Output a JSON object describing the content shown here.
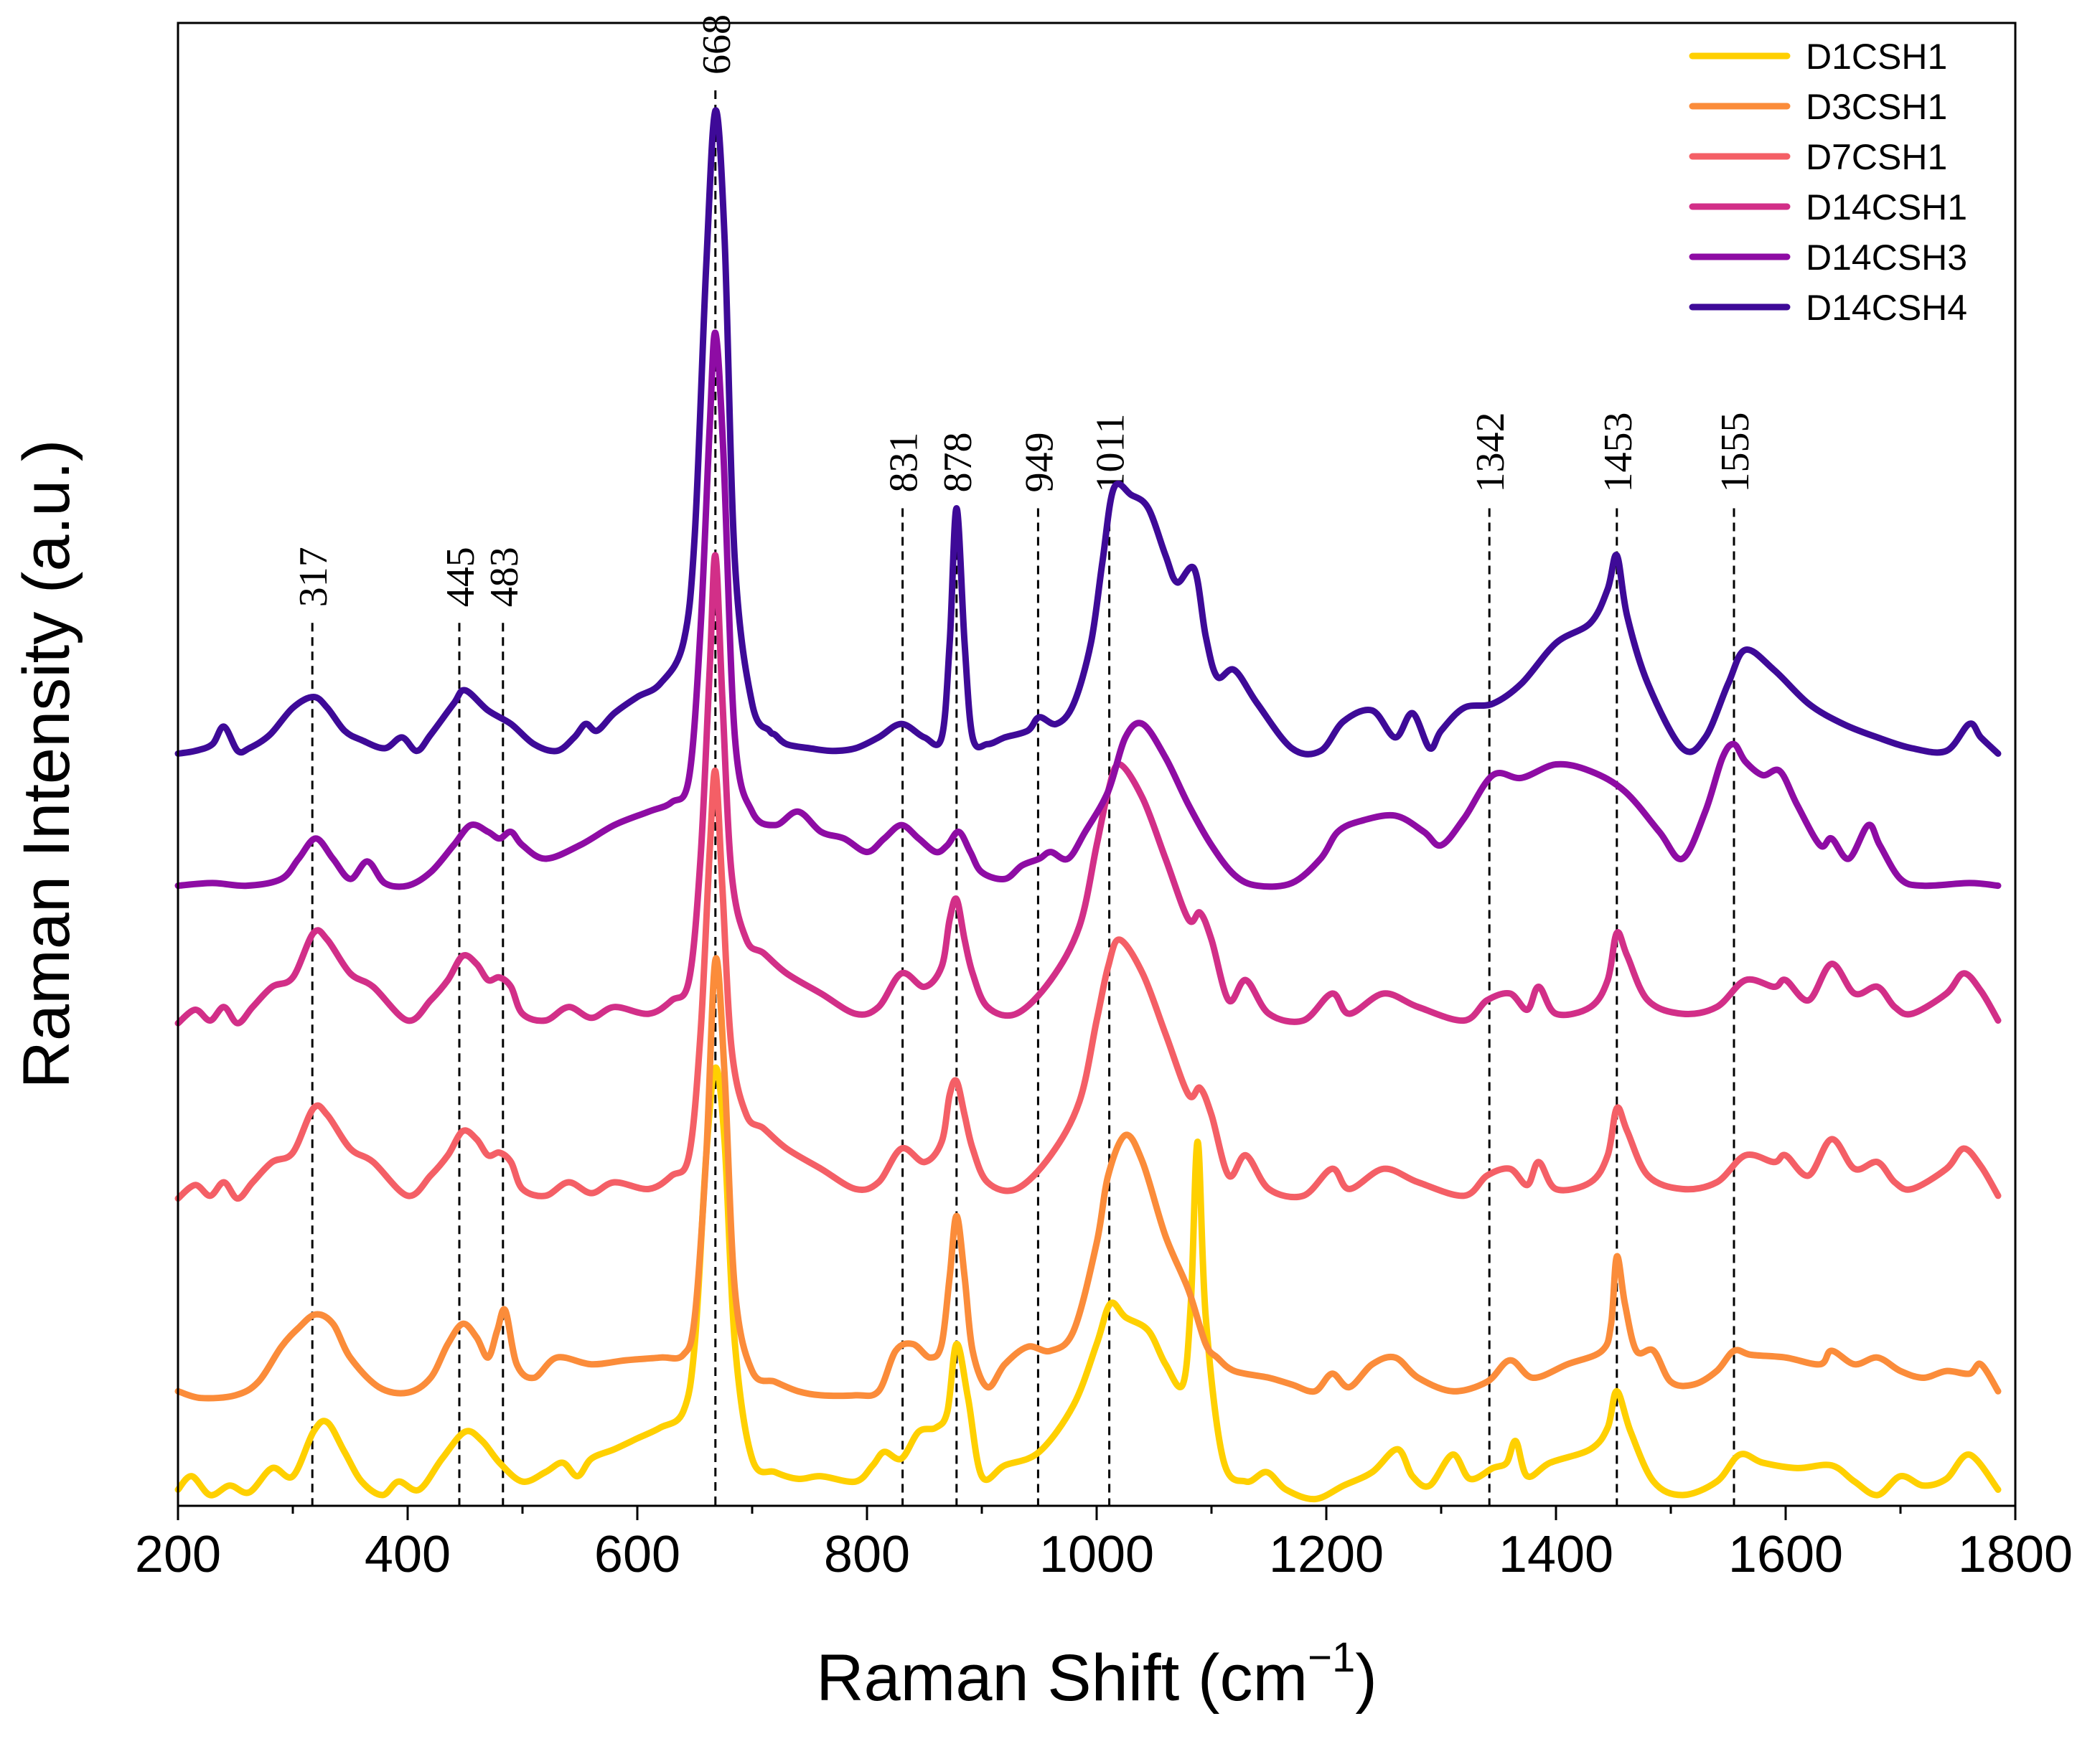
{
  "chart_data": {
    "type": "line",
    "title": "",
    "xlabel": "Raman Shift (cm",
    "xlabel_sup": "−1",
    "xlabel_end": ")",
    "ylabel": "Raman Intensity (a.u.)",
    "xlim": [
      200,
      1800
    ],
    "ylim": [
      0,
      11
    ],
    "x_ticks": [
      200,
      400,
      600,
      800,
      1000,
      1200,
      1400,
      1600,
      1800
    ],
    "x_tick_labels": [
      "200",
      "400",
      "600",
      "800",
      "1000",
      "1200",
      "1400",
      "1600",
      "1800"
    ],
    "y_ticks_shown": false,
    "legend_position": "top-right",
    "peak_markers": [
      {
        "x": 317,
        "label": "317",
        "top": 6.55
      },
      {
        "x": 445,
        "label": "445",
        "top": 6.55
      },
      {
        "x": 483,
        "label": "483",
        "top": 6.55
      },
      {
        "x": 668,
        "label": "668",
        "top": 10.5
      },
      {
        "x": 831,
        "label": "831",
        "top": 7.4
      },
      {
        "x": 878,
        "label": "878",
        "top": 7.4
      },
      {
        "x": 949,
        "label": "949",
        "top": 7.4
      },
      {
        "x": 1011,
        "label": "1011",
        "top": 7.4
      },
      {
        "x": 1342,
        "label": "1342",
        "top": 7.4
      },
      {
        "x": 1453,
        "label": "1453",
        "top": 7.4
      },
      {
        "x": 1555,
        "label": "1555",
        "top": 7.4
      }
    ],
    "series": [
      {
        "name": "D1CSH1",
        "color": "#FFD000",
        "x": [
          200,
          212,
          228,
          245,
          262,
          282,
          300,
          318,
          330,
          345,
          360,
          378,
          392,
          410,
          430,
          450,
          465,
          480,
          500,
          520,
          535,
          548,
          560,
          580,
          600,
          620,
          640,
          650,
          660,
          668,
          676,
          685,
          700,
          720,
          740,
          760,
          790,
          805,
          815,
          830,
          845,
          860,
          870,
          878,
          888,
          900,
          920,
          950,
          980,
          1000,
          1012,
          1025,
          1045,
          1060,
          1075,
          1082,
          1088,
          1095,
          1110,
          1130,
          1148,
          1165,
          1190,
          1215,
          1240,
          1262,
          1275,
          1290,
          1310,
          1325,
          1345,
          1357,
          1365,
          1375,
          1395,
          1430,
          1445,
          1453,
          1465,
          1485,
          1510,
          1540,
          1560,
          1580,
          1610,
          1640,
          1660,
          1680,
          1700,
          1720,
          1740,
          1760,
          1785
        ],
        "y": [
          0.12,
          0.22,
          0.08,
          0.15,
          0.1,
          0.28,
          0.22,
          0.55,
          0.62,
          0.4,
          0.18,
          0.08,
          0.18,
          0.12,
          0.35,
          0.55,
          0.48,
          0.32,
          0.18,
          0.25,
          0.32,
          0.22,
          0.35,
          0.42,
          0.5,
          0.58,
          0.7,
          1.2,
          2.6,
          3.25,
          2.7,
          1.2,
          0.35,
          0.25,
          0.2,
          0.22,
          0.18,
          0.3,
          0.4,
          0.35,
          0.55,
          0.58,
          0.7,
          1.2,
          0.8,
          0.22,
          0.3,
          0.4,
          0.75,
          1.2,
          1.5,
          1.4,
          1.3,
          1.05,
          0.9,
          1.5,
          2.7,
          1.4,
          0.35,
          0.18,
          0.25,
          0.12,
          0.05,
          0.15,
          0.25,
          0.42,
          0.22,
          0.15,
          0.38,
          0.2,
          0.28,
          0.32,
          0.48,
          0.22,
          0.32,
          0.42,
          0.58,
          0.85,
          0.55,
          0.18,
          0.08,
          0.18,
          0.38,
          0.32,
          0.28,
          0.3,
          0.18,
          0.08,
          0.22,
          0.15,
          0.2,
          0.38,
          0.12
        ]
      },
      {
        "name": "D3CSH1",
        "color": "#FB8C3A",
        "x": [
          200,
          220,
          250,
          270,
          290,
          305,
          320,
          335,
          350,
          375,
          400,
          420,
          435,
          448,
          460,
          470,
          478,
          485,
          495,
          510,
          530,
          560,
          590,
          620,
          640,
          650,
          660,
          668,
          676,
          685,
          700,
          720,
          740,
          760,
          790,
          810,
          825,
          840,
          855,
          865,
          872,
          878,
          885,
          892,
          905,
          920,
          940,
          960,
          980,
          1000,
          1010,
          1025,
          1040,
          1060,
          1080,
          1095,
          1105,
          1120,
          1150,
          1170,
          1190,
          1205,
          1220,
          1240,
          1260,
          1280,
          1310,
          1340,
          1360,
          1380,
          1410,
          1440,
          1448,
          1453,
          1460,
          1470,
          1485,
          1500,
          1520,
          1540,
          1555,
          1570,
          1600,
          1630,
          1640,
          1660,
          1680,
          1700,
          1720,
          1740,
          1760,
          1770,
          1785
        ],
        "y": [
          0.85,
          0.8,
          0.82,
          0.92,
          1.18,
          1.32,
          1.42,
          1.35,
          1.1,
          0.88,
          0.84,
          0.95,
          1.2,
          1.35,
          1.25,
          1.1,
          1.3,
          1.45,
          1.05,
          0.95,
          1.1,
          1.05,
          1.08,
          1.1,
          1.12,
          1.4,
          2.6,
          4.05,
          3.2,
          1.6,
          1.0,
          0.92,
          0.85,
          0.82,
          0.82,
          0.85,
          1.15,
          1.2,
          1.1,
          1.2,
          1.7,
          2.15,
          1.7,
          1.15,
          0.88,
          1.05,
          1.18,
          1.15,
          1.3,
          1.95,
          2.45,
          2.75,
          2.55,
          2.0,
          1.6,
          1.2,
          1.1,
          1.0,
          0.95,
          0.9,
          0.85,
          0.98,
          0.88,
          1.05,
          1.1,
          0.95,
          0.85,
          0.92,
          1.08,
          0.95,
          1.05,
          1.15,
          1.35,
          1.85,
          1.5,
          1.15,
          1.15,
          0.92,
          0.9,
          1.0,
          1.15,
          1.12,
          1.1,
          1.05,
          1.15,
          1.05,
          1.1,
          1.0,
          0.95,
          1.0,
          0.98,
          1.05,
          0.85
        ]
      },
      {
        "name": "D7CSH1",
        "color": "#F45F66",
        "x": [
          200,
          215,
          228,
          240,
          252,
          265,
          282,
          300,
          318,
          330,
          350,
          370,
          400,
          420,
          435,
          448,
          460,
          470,
          480,
          490,
          500,
          520,
          540,
          560,
          580,
          610,
          630,
          645,
          655,
          663,
          668,
          674,
          682,
          695,
          710,
          730,
          760,
          790,
          810,
          830,
          850,
          865,
          872,
          878,
          885,
          892,
          905,
          930,
          960,
          985,
          1000,
          1010,
          1020,
          1040,
          1060,
          1080,
          1090,
          1100,
          1115,
          1130,
          1150,
          1180,
          1205,
          1220,
          1250,
          1280,
          1320,
          1340,
          1360,
          1375,
          1385,
          1400,
          1430,
          1445,
          1453,
          1462,
          1480,
          1510,
          1540,
          1565,
          1590,
          1600,
          1620,
          1640,
          1660,
          1680,
          1695,
          1710,
          1740,
          1755,
          1770,
          1785
        ],
        "y": [
          2.28,
          2.38,
          2.3,
          2.4,
          2.28,
          2.4,
          2.55,
          2.62,
          2.95,
          2.9,
          2.65,
          2.55,
          2.3,
          2.45,
          2.6,
          2.78,
          2.72,
          2.6,
          2.62,
          2.55,
          2.35,
          2.3,
          2.4,
          2.32,
          2.4,
          2.35,
          2.45,
          2.6,
          3.5,
          4.85,
          5.45,
          4.6,
          3.4,
          2.9,
          2.8,
          2.65,
          2.5,
          2.35,
          2.4,
          2.65,
          2.55,
          2.7,
          3.05,
          3.15,
          2.9,
          2.65,
          2.4,
          2.35,
          2.6,
          3.0,
          3.6,
          4.0,
          4.2,
          3.95,
          3.5,
          3.05,
          3.1,
          2.9,
          2.45,
          2.6,
          2.35,
          2.3,
          2.5,
          2.35,
          2.5,
          2.4,
          2.3,
          2.45,
          2.5,
          2.38,
          2.55,
          2.35,
          2.4,
          2.6,
          2.95,
          2.78,
          2.45,
          2.35,
          2.4,
          2.6,
          2.55,
          2.6,
          2.45,
          2.72,
          2.5,
          2.55,
          2.4,
          2.35,
          2.5,
          2.65,
          2.52,
          2.3
        ]
      },
      {
        "name": "D14CSH1",
        "color": "#D22F88",
        "x": [
          200,
          215,
          228,
          240,
          252,
          265,
          282,
          300,
          318,
          330,
          350,
          370,
          400,
          420,
          435,
          448,
          460,
          470,
          480,
          490,
          500,
          520,
          540,
          560,
          580,
          610,
          630,
          645,
          655,
          663,
          668,
          674,
          682,
          695,
          710,
          730,
          760,
          790,
          810,
          830,
          850,
          865,
          872,
          878,
          885,
          892,
          905,
          930,
          960,
          985,
          1000,
          1010,
          1020,
          1040,
          1060,
          1080,
          1090,
          1100,
          1115,
          1130,
          1150,
          1180,
          1205,
          1220,
          1250,
          1280,
          1320,
          1340,
          1360,
          1375,
          1385,
          1400,
          1430,
          1445,
          1453,
          1462,
          1480,
          1510,
          1540,
          1565,
          1590,
          1600,
          1620,
          1640,
          1660,
          1680,
          1695,
          1710,
          1740,
          1755,
          1770,
          1785
        ],
        "y": [
          3.58,
          3.68,
          3.6,
          3.7,
          3.58,
          3.7,
          3.85,
          3.92,
          4.25,
          4.2,
          3.95,
          3.85,
          3.6,
          3.75,
          3.9,
          4.08,
          4.02,
          3.9,
          3.92,
          3.85,
          3.65,
          3.6,
          3.7,
          3.62,
          3.7,
          3.65,
          3.75,
          3.9,
          4.8,
          6.2,
          7.05,
          6.0,
          4.7,
          4.2,
          4.1,
          3.95,
          3.8,
          3.65,
          3.7,
          3.95,
          3.85,
          4.0,
          4.35,
          4.5,
          4.2,
          3.95,
          3.7,
          3.65,
          3.9,
          4.3,
          4.9,
          5.3,
          5.5,
          5.25,
          4.8,
          4.35,
          4.4,
          4.2,
          3.75,
          3.9,
          3.65,
          3.6,
          3.8,
          3.65,
          3.8,
          3.7,
          3.6,
          3.75,
          3.8,
          3.68,
          3.85,
          3.65,
          3.7,
          3.9,
          4.25,
          4.08,
          3.75,
          3.65,
          3.7,
          3.9,
          3.85,
          3.9,
          3.75,
          4.02,
          3.8,
          3.85,
          3.7,
          3.65,
          3.8,
          3.95,
          3.82,
          3.6
        ]
      },
      {
        "name": "D14CSH3",
        "color": "#8E0CA4",
        "x": [
          200,
          230,
          260,
          290,
          305,
          320,
          335,
          350,
          365,
          380,
          400,
          420,
          440,
          455,
          470,
          480,
          490,
          500,
          520,
          550,
          580,
          610,
          630,
          645,
          655,
          663,
          668,
          675,
          685,
          700,
          720,
          740,
          760,
          780,
          800,
          815,
          830,
          845,
          860,
          870,
          880,
          890,
          900,
          920,
          935,
          950,
          960,
          975,
          990,
          1010,
          1025,
          1040,
          1060,
          1080,
          1100,
          1120,
          1140,
          1170,
          1195,
          1210,
          1230,
          1260,
          1285,
          1300,
          1320,
          1345,
          1370,
          1400,
          1430,
          1460,
          1490,
          1510,
          1530,
          1545,
          1555,
          1565,
          1580,
          1595,
          1610,
          1630,
          1640,
          1655,
          1672,
          1682,
          1700,
          1720,
          1760,
          1785
        ],
        "y": [
          4.6,
          4.62,
          4.6,
          4.65,
          4.8,
          4.95,
          4.8,
          4.65,
          4.78,
          4.62,
          4.6,
          4.7,
          4.9,
          5.05,
          5.0,
          4.95,
          5.0,
          4.9,
          4.8,
          4.9,
          5.05,
          5.15,
          5.22,
          5.4,
          6.5,
          8.0,
          8.7,
          7.8,
          5.7,
          5.15,
          5.05,
          5.15,
          5.0,
          4.95,
          4.85,
          4.95,
          5.05,
          4.95,
          4.85,
          4.9,
          5.0,
          4.85,
          4.7,
          4.65,
          4.75,
          4.8,
          4.85,
          4.8,
          5.0,
          5.3,
          5.7,
          5.8,
          5.55,
          5.2,
          4.9,
          4.68,
          4.6,
          4.62,
          4.8,
          5.0,
          5.08,
          5.12,
          5.0,
          4.9,
          5.1,
          5.42,
          5.4,
          5.5,
          5.45,
          5.3,
          5.0,
          4.8,
          5.15,
          5.55,
          5.65,
          5.52,
          5.42,
          5.45,
          5.2,
          4.9,
          4.95,
          4.8,
          5.05,
          4.9,
          4.65,
          4.6,
          4.62,
          4.6
        ]
      },
      {
        "name": "D14CSH4",
        "color": "#3E0A98",
        "x": [
          200,
          215,
          230,
          240,
          252,
          262,
          280,
          300,
          318,
          330,
          345,
          360,
          380,
          395,
          408,
          420,
          440,
          450,
          470,
          490,
          510,
          530,
          545,
          555,
          565,
          580,
          600,
          620,
          640,
          650,
          660,
          668,
          676,
          685,
          700,
          715,
          720,
          730,
          750,
          770,
          790,
          810,
          830,
          850,
          865,
          872,
          878,
          885,
          892,
          905,
          920,
          940,
          950,
          965,
          980,
          995,
          1005,
          1015,
          1030,
          1045,
          1060,
          1070,
          1085,
          1095,
          1105,
          1120,
          1140,
          1170,
          1195,
          1215,
          1240,
          1260,
          1275,
          1290,
          1300,
          1320,
          1345,
          1370,
          1400,
          1430,
          1445,
          1453,
          1462,
          1480,
          1510,
          1530,
          1550,
          1565,
          1590,
          1620,
          1650,
          1680,
          1710,
          1740,
          1760,
          1770,
          1785
        ],
        "y": [
          5.58,
          5.6,
          5.65,
          5.78,
          5.6,
          5.62,
          5.72,
          5.92,
          6.0,
          5.92,
          5.75,
          5.68,
          5.62,
          5.7,
          5.6,
          5.72,
          5.95,
          6.05,
          5.9,
          5.8,
          5.65,
          5.6,
          5.7,
          5.8,
          5.75,
          5.88,
          6.0,
          6.1,
          6.4,
          7.2,
          9.2,
          10.35,
          9.4,
          7.0,
          5.95,
          5.75,
          5.72,
          5.65,
          5.62,
          5.6,
          5.62,
          5.7,
          5.8,
          5.7,
          5.7,
          6.4,
          7.4,
          6.4,
          5.7,
          5.65,
          5.7,
          5.75,
          5.85,
          5.8,
          5.95,
          6.4,
          7.0,
          7.55,
          7.5,
          7.4,
          7.05,
          6.85,
          6.95,
          6.45,
          6.15,
          6.2,
          5.95,
          5.62,
          5.6,
          5.82,
          5.9,
          5.7,
          5.88,
          5.62,
          5.75,
          5.92,
          5.95,
          6.1,
          6.4,
          6.55,
          6.8,
          7.05,
          6.6,
          6.1,
          5.62,
          5.7,
          6.1,
          6.35,
          6.2,
          5.95,
          5.8,
          5.7,
          5.62,
          5.6,
          5.8,
          5.7,
          5.58
        ]
      }
    ]
  }
}
